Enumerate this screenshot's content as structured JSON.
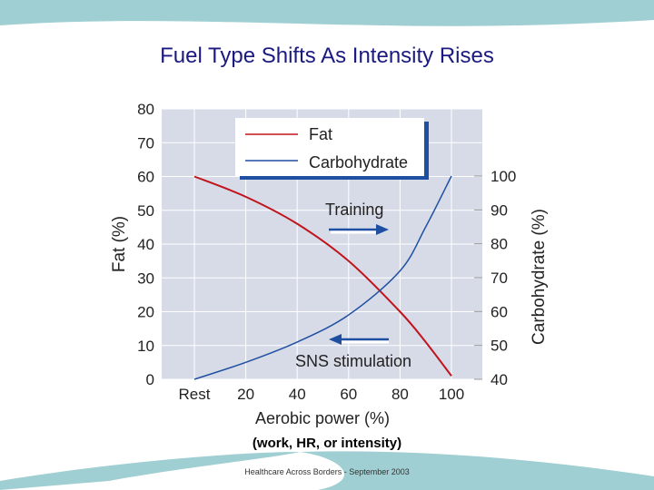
{
  "slide": {
    "title": "Fuel Type Shifts As Intensity Rises",
    "footnote": "(work, HR, or intensity)",
    "footer": "Healthcare Across Borders  -  September 2003"
  },
  "colors": {
    "fat": "#c0141c",
    "carb": "#1f4fa0",
    "plot_bg": "#d7dbe8",
    "teal": "#9fcfd2"
  },
  "chart_data": {
    "type": "line",
    "xlabel": "Aerobic power (%)",
    "ylabel_left": "Fat (%)",
    "ylabel_right": "Carbohydrate (%)",
    "x_ticks": [
      "Rest",
      "20",
      "40",
      "60",
      "80",
      "100"
    ],
    "x_tick_values": [
      0,
      20,
      40,
      60,
      80,
      100
    ],
    "xlim": [
      0,
      100
    ],
    "y_left_lim": [
      0,
      80
    ],
    "y_left_ticks": [
      "0",
      "10",
      "20",
      "30",
      "40",
      "50",
      "60",
      "70",
      "80"
    ],
    "y_right_lim": [
      40,
      100
    ],
    "y_right_ticks": [
      "40",
      "50",
      "60",
      "70",
      "80",
      "90",
      "100"
    ],
    "grid": true,
    "legend_position": "top",
    "series": [
      {
        "name": "Fat",
        "axis": "left",
        "x": [
          0,
          20,
          40,
          60,
          80,
          90,
          100
        ],
        "y": [
          60,
          54,
          46,
          35,
          20,
          11,
          1
        ]
      },
      {
        "name": "Carbohydrate",
        "axis": "right",
        "x": [
          0,
          20,
          40,
          60,
          80,
          90,
          100
        ],
        "y": [
          40,
          45,
          51,
          59,
          72,
          85,
          100
        ]
      }
    ],
    "annotations": [
      {
        "text": "Training",
        "direction": "right"
      },
      {
        "text": "SNS stimulation",
        "direction": "left"
      }
    ]
  }
}
